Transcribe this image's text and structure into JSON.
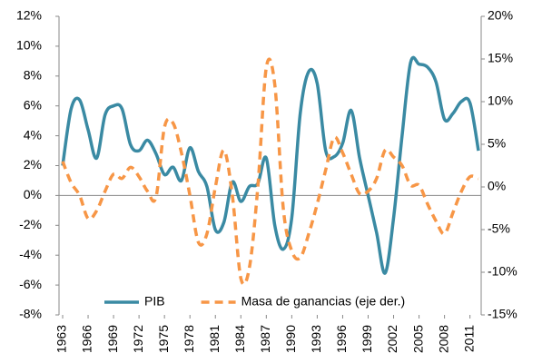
{
  "chart_data": {
    "type": "line",
    "x": [
      1963,
      1964,
      1965,
      1966,
      1967,
      1968,
      1969,
      1970,
      1971,
      1972,
      1973,
      1974,
      1975,
      1976,
      1977,
      1978,
      1979,
      1980,
      1981,
      1982,
      1983,
      1984,
      1985,
      1986,
      1987,
      1988,
      1989,
      1990,
      1991,
      1992,
      1993,
      1994,
      1995,
      1996,
      1997,
      1998,
      1999,
      2000,
      2001,
      2002,
      2003,
      2004,
      2005,
      2006,
      2007,
      2008,
      2009,
      2010,
      2011,
      2012
    ],
    "xlim": [
      1963,
      2012
    ],
    "xticks": [
      1963,
      1966,
      1969,
      1972,
      1975,
      1978,
      1981,
      1984,
      1987,
      1990,
      1993,
      1996,
      1999,
      2002,
      2005,
      2008,
      2011
    ],
    "ylim": [
      -8,
      12
    ],
    "yticks": [
      {
        "value": -8,
        "label": "-8%"
      },
      {
        "value": -6,
        "label": "-6%"
      },
      {
        "value": -4,
        "label": "-4%"
      },
      {
        "value": -2,
        "label": "-2%"
      },
      {
        "value": 0,
        "label": "0%"
      },
      {
        "value": 2,
        "label": "2%"
      },
      {
        "value": 4,
        "label": "4%"
      },
      {
        "value": 6,
        "label": "6%"
      },
      {
        "value": 8,
        "label": "8%"
      },
      {
        "value": 10,
        "label": "10%"
      },
      {
        "value": 12,
        "label": "12%"
      }
    ],
    "y2lim": [
      -15,
      20
    ],
    "y2ticks": [
      {
        "value": -15,
        "label": "-15%"
      },
      {
        "value": -10,
        "label": "-10%"
      },
      {
        "value": -5,
        "label": "-5%"
      },
      {
        "value": 0,
        "label": "0%"
      },
      {
        "value": 5,
        "label": "5%"
      },
      {
        "value": 10,
        "label": "10%"
      },
      {
        "value": 15,
        "label": "15%"
      },
      {
        "value": 20,
        "label": "20%"
      }
    ],
    "series": [
      {
        "name": "PIB",
        "color": "#3a8aa3",
        "dashed": false,
        "values": [
          2.0,
          5.8,
          6.4,
          4.4,
          2.5,
          5.4,
          6.0,
          5.8,
          3.4,
          3.0,
          3.7,
          2.8,
          1.4,
          1.9,
          1.0,
          3.2,
          1.6,
          0.6,
          -2.3,
          -1.8,
          0.9,
          -0.4,
          0.6,
          0.8,
          2.5,
          -2.0,
          -3.6,
          -1.5,
          5.5,
          8.3,
          7.5,
          3.0,
          2.6,
          3.5,
          5.7,
          2.5,
          0,
          -2.5,
          -5.2,
          -1.5,
          4.0,
          8.9,
          8.8,
          8.6,
          7.6,
          5.1,
          5.5,
          6.3,
          6.2,
          3.0
        ]
      },
      {
        "name": "Masa de ganancias (eje der.)",
        "color": "#f79646",
        "dashed": true,
        "axis": "y2",
        "values": [
          3.0,
          0.5,
          -1.0,
          -3.7,
          -2.8,
          -0.5,
          1.5,
          1.0,
          2.3,
          1.2,
          -0.5,
          -1.2,
          7.0,
          7.5,
          4.0,
          -1.0,
          -6.5,
          -5.5,
          0,
          4.3,
          -1.0,
          -10.7,
          -9.5,
          0,
          14.0,
          12.0,
          -2.5,
          -7.5,
          -8.3,
          -5.5,
          -2.0,
          2.0,
          5.8,
          4.0,
          1.5,
          -0.8,
          -0.5,
          1.0,
          4.3,
          3.5,
          2.5,
          0.2,
          0.2,
          -2.0,
          -4.0,
          -5.5,
          -3.0,
          -0.5,
          1.2,
          1.0
        ]
      }
    ]
  }
}
